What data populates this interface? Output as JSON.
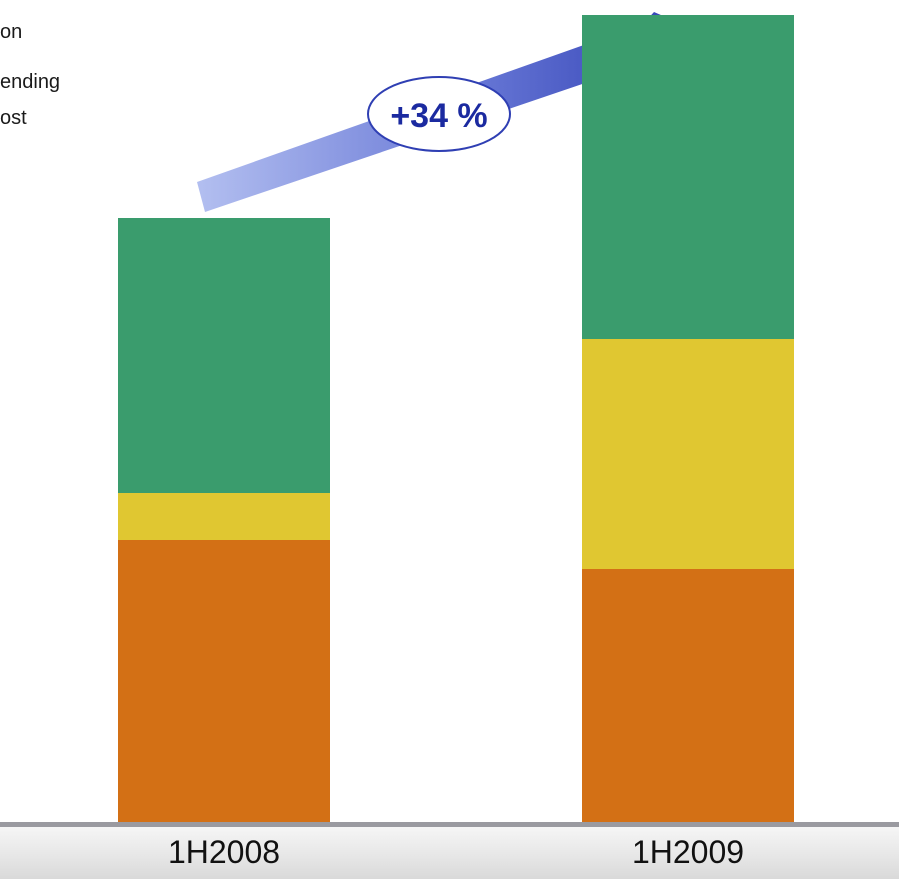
{
  "chart_data": {
    "type": "bar",
    "stacked": true,
    "categories": [
      "1H2008",
      "1H2009"
    ],
    "series": [
      {
        "name": "",
        "color": "#d37015",
        "values": [
          241,
          216
        ]
      },
      {
        "name": "",
        "color": "#e0c731",
        "values": [
          40,
          196
        ]
      },
      {
        "name": "",
        "color": "#3a9c6d",
        "values": [
          235,
          277
        ]
      }
    ],
    "ylim": [
      0,
      700
    ],
    "title": "",
    "xlabel": "",
    "ylabel": "",
    "annotation": {
      "label": "+34 %",
      "arrow_color": "#2f3fb3"
    },
    "legend_fragments": [
      "on",
      "ending",
      "ost"
    ],
    "grid": false
  }
}
